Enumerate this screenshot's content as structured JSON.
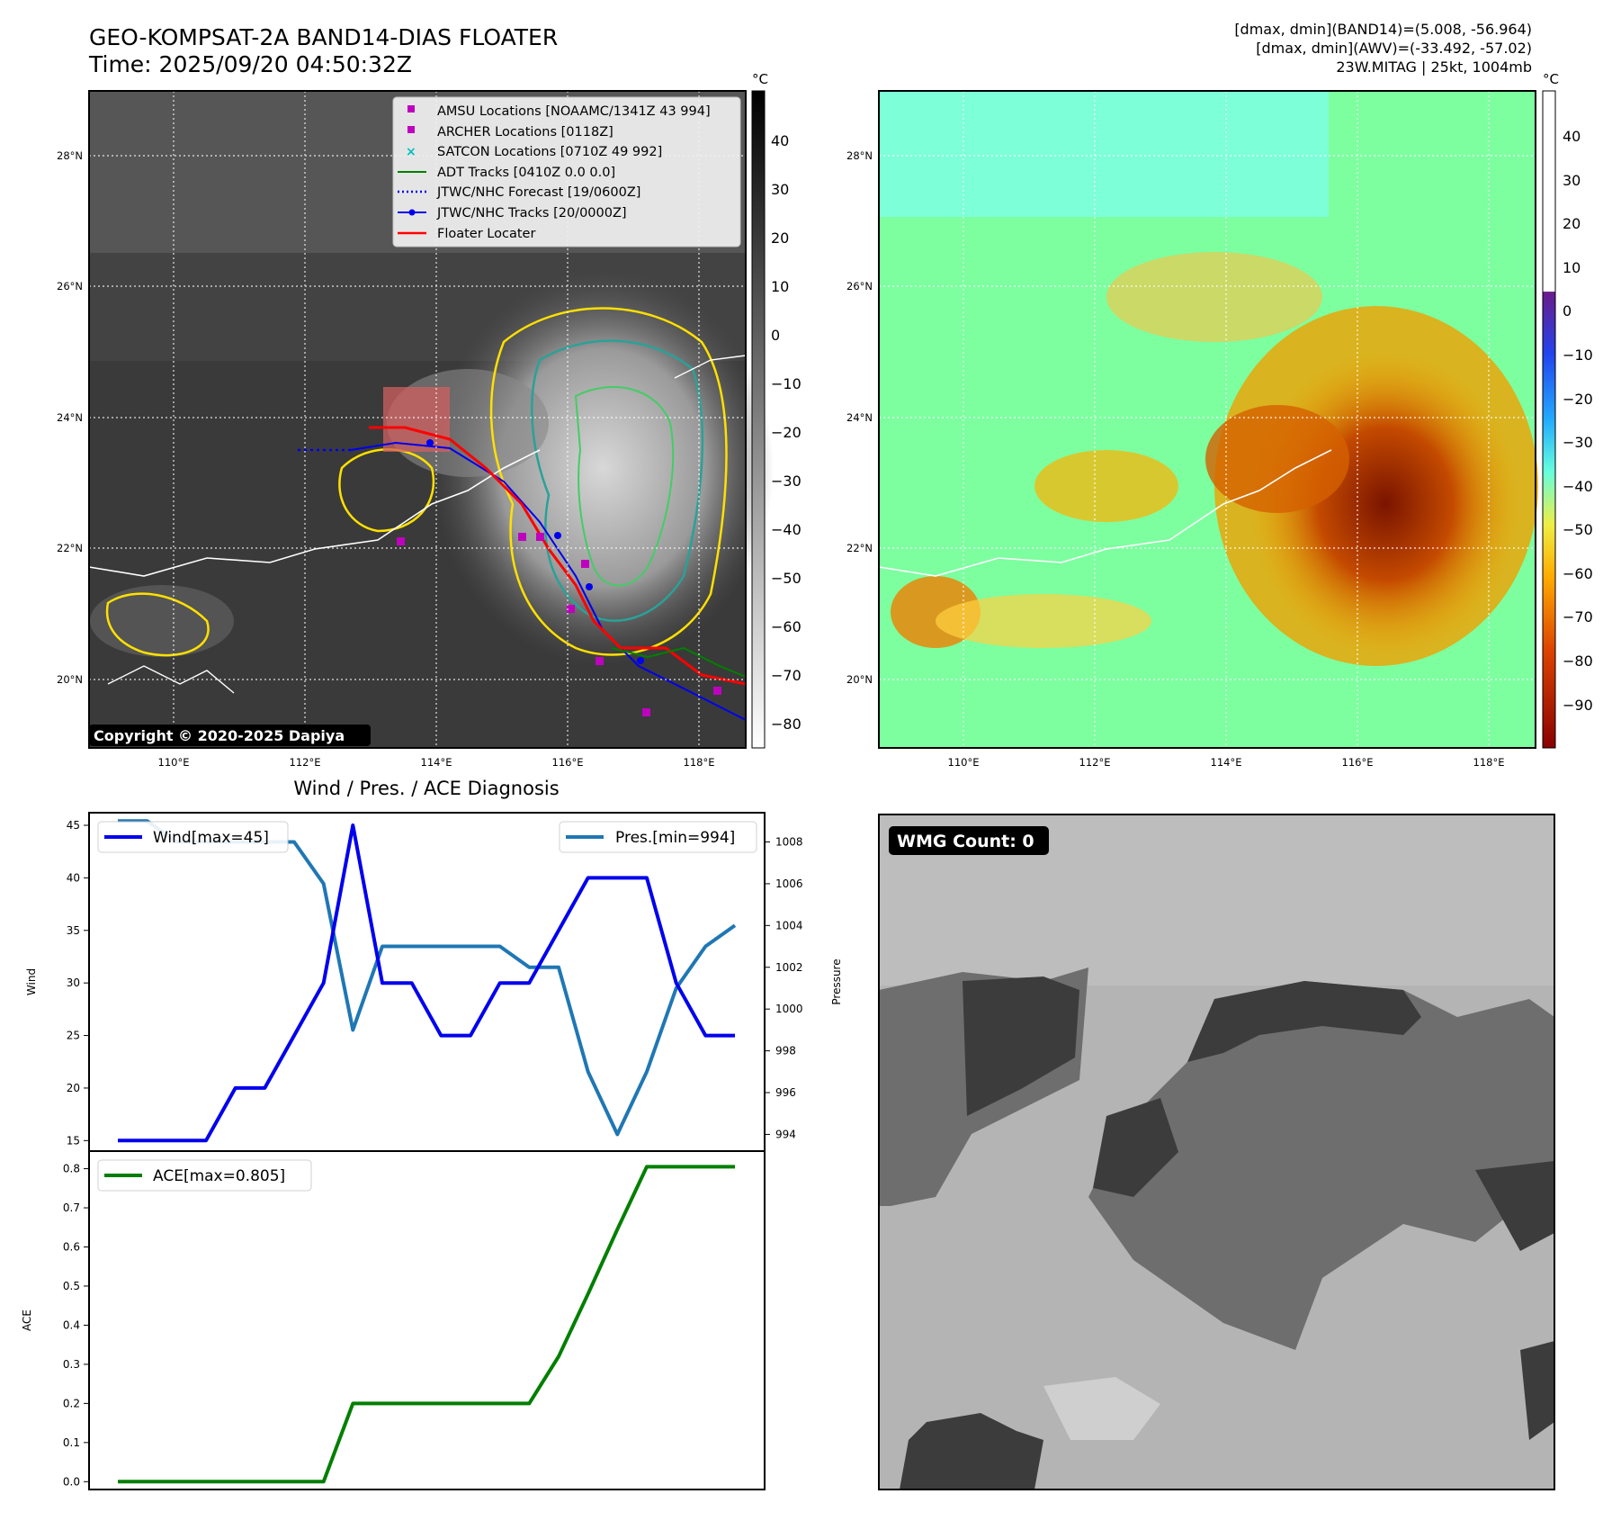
{
  "header": {
    "title_line1": "GEO-KOMPSAT-2A BAND14-DIAS FLOATER",
    "title_line2": "Time: 2025/09/20 04:50:32Z",
    "info_line1": "[dmax, dmin](BAND14)=(5.008, -56.964)",
    "info_line2": "[dmax, dmin](AWV)=(-33.492, -57.02)",
    "info_line3": "23W.MITAG | 25kt, 1004mb"
  },
  "map_axes": {
    "lon_ticks": [
      "110°E",
      "112°E",
      "114°E",
      "116°E",
      "118°E"
    ],
    "lat_ticks": [
      "28°N",
      "26°N",
      "24°N",
      "22°N",
      "20°N"
    ]
  },
  "colorbar_left": {
    "unit": "°C",
    "ticks": [
      "40",
      "30",
      "20",
      "10",
      "0",
      "−10",
      "−20",
      "−30",
      "−40",
      "−50",
      "−60",
      "−70",
      "−80"
    ]
  },
  "colorbar_right": {
    "unit": "°C",
    "ticks": [
      "40",
      "30",
      "20",
      "10",
      "0",
      "−10",
      "−20",
      "−30",
      "−40",
      "−50",
      "−60",
      "−70",
      "−80",
      "−90"
    ]
  },
  "legend": {
    "amsu": "AMSU Locations [NOAAMC/1341Z 43 994]",
    "archer": "ARCHER Locations [0118Z]",
    "satcon": "SATCON Locations [0710Z 49 992]",
    "adt": "ADT Tracks [0410Z 0.0 0.0]",
    "forecast": "JTWC/NHC Forecast [19/0600Z]",
    "tracks": "JTWC/NHC Tracks [20/0000Z]",
    "floater": "Floater Locater"
  },
  "copyright": "Copyright © 2020-2025 Dapiya",
  "wmg_label": "WMG Count: 0",
  "colors": {
    "wind": "#0000ee",
    "pressure": "#1f77b4",
    "ace": "#007f00",
    "amsu": "#bf00bf",
    "satcon": "#00bfbf",
    "floater": "#ff0000"
  },
  "chart_data": [
    {
      "type": "line",
      "title": "Wind / Pres. / ACE Diagnosis",
      "ylabel": "Wind",
      "y2label": "Pressure",
      "ylim": [
        14,
        46.2
      ],
      "y2lim": [
        993.2,
        1009.4
      ],
      "yticks": [
        "15",
        "20",
        "25",
        "30",
        "35",
        "40",
        "45"
      ],
      "y2ticks": [
        "994",
        "996",
        "998",
        "1000",
        "1002",
        "1004",
        "1006",
        "1008"
      ],
      "x": [
        0,
        1,
        2,
        3,
        4,
        5,
        6,
        7,
        8,
        9,
        10,
        11,
        12,
        13,
        14,
        15,
        16,
        17,
        18,
        19,
        20,
        21
      ],
      "series": [
        {
          "name": "Wind[max=45]",
          "axis": "left",
          "values": [
            15,
            15,
            15,
            15,
            20,
            20,
            25,
            30,
            45,
            30,
            30,
            25,
            25,
            30,
            30,
            35,
            40,
            40,
            40,
            30,
            25,
            25
          ]
        },
        {
          "name": "Pres.[min=994]",
          "axis": "right",
          "values": [
            1009,
            1009,
            1008,
            1008,
            1008,
            1008,
            1008,
            1006,
            999,
            1003,
            1003,
            1003,
            1003,
            1003,
            1002,
            1002,
            997,
            994,
            997,
            1001,
            1003,
            1004
          ]
        }
      ]
    },
    {
      "type": "line",
      "ylabel": "ACE",
      "ylim": [
        -0.02,
        0.845
      ],
      "yticks": [
        "0.0",
        "0.1",
        "0.2",
        "0.3",
        "0.4",
        "0.5",
        "0.6",
        "0.7",
        "0.8"
      ],
      "x": [
        0,
        1,
        2,
        3,
        4,
        5,
        6,
        7,
        8,
        9,
        10,
        11,
        12,
        13,
        14,
        15,
        16,
        17,
        18,
        19,
        20,
        21
      ],
      "series": [
        {
          "name": "ACE[max=0.805]",
          "values": [
            0,
            0,
            0,
            0,
            0,
            0,
            0,
            0,
            0.2,
            0.2,
            0.2,
            0.2,
            0.2,
            0.2,
            0.2,
            0.32,
            0.48,
            0.645,
            0.805,
            0.805,
            0.805,
            0.805
          ]
        }
      ]
    }
  ]
}
